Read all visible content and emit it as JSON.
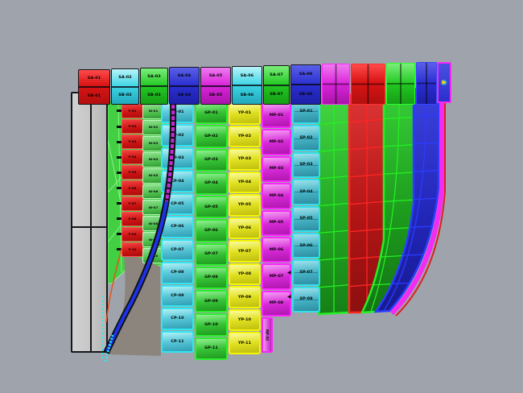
{
  "colors": {
    "background": "#9fa4ac",
    "hull_shell_gray": "#8b857d",
    "pillar_gray": "#c6c6c6",
    "red": "#d31717",
    "green": "#27c427",
    "blue": "#2a2ed0",
    "cyan": "#38d8e6",
    "magenta": "#d924d9",
    "yellow": "#e2dd16",
    "grid_green_border": "#24f024",
    "grid_red_border": "#ff2525",
    "grid_blue_border": "#2b3cff",
    "edge_magenta": "#f32bf3",
    "stem_magenta": "#c92ad8",
    "stem_blue": "#1d33ea",
    "stem_outline": "#101016",
    "dotted_cyan": "#28eaec",
    "accent_orange": "#e0551a"
  },
  "icons": {
    "end_cap_arrow": "▶",
    "plate_marker": "◀"
  },
  "top_band": {
    "blocks": [
      {
        "color": "red",
        "labels": [
          "SA-01",
          "SB-01"
        ]
      },
      {
        "color": "cyan",
        "labels": [
          "SA-02",
          "SB-02"
        ]
      },
      {
        "color": "green",
        "labels": [
          "SA-03",
          "SB-03"
        ]
      },
      {
        "color": "blue",
        "labels": [
          "SA-04",
          "SB-04"
        ]
      },
      {
        "color": "magenta",
        "labels": [
          "SA-05",
          "SB-05"
        ]
      },
      {
        "color": "cyan",
        "labels": [
          "SA-06",
          "SB-06"
        ]
      },
      {
        "color": "green",
        "labels": [
          "SA-07",
          "SB-07"
        ]
      },
      {
        "color": "blue",
        "labels": [
          "SA-08",
          "SB-08"
        ]
      },
      {
        "color": "magenta"
      },
      {
        "color": "red"
      },
      {
        "color": "green"
      },
      {
        "color": "blue"
      }
    ]
  },
  "strakes": {
    "frame_strip": {
      "labels": [
        "F-01",
        "F-02",
        "F-03",
        "F-04",
        "F-05",
        "F-06",
        "F-07",
        "F-08",
        "F-09",
        "F-10"
      ]
    },
    "web_strip": {
      "labels": [
        "W-01",
        "W-02",
        "W-03",
        "W-04",
        "W-05",
        "W-06",
        "W-07",
        "W-08",
        "W-09",
        "W-10"
      ]
    },
    "columns": [
      {
        "id": "cyan-strake-1",
        "color": "cyan",
        "labels": [
          "CP-01",
          "CP-02",
          "CP-03",
          "CP-04",
          "CP-05",
          "CP-06",
          "CP-07",
          "CP-08",
          "CP-09",
          "CP-10",
          "CP-11"
        ]
      },
      {
        "id": "green-strake-1",
        "color": "green",
        "labels": [
          "GP-01",
          "GP-02",
          "GP-03",
          "GP-04",
          "GP-05",
          "GP-06",
          "GP-07",
          "GP-08",
          "GP-09",
          "GP-10",
          "GP-11"
        ]
      },
      {
        "id": "yellow-strake",
        "color": "yellow",
        "labels": [
          "YP-01",
          "YP-02",
          "YP-03",
          "YP-04",
          "YP-05",
          "YP-06",
          "YP-07",
          "YP-08",
          "YP-09",
          "YP-10",
          "YP-11"
        ]
      },
      {
        "id": "magenta-strake",
        "color": "magenta",
        "labels": [
          "MP-01",
          "MP-02",
          "MP-03",
          "MP-04",
          "MP-05",
          "MP-06",
          "MP-07",
          "MP-08"
        ],
        "tail_label": "MP-09"
      },
      {
        "id": "cyan-strake-2",
        "color": "cyan",
        "labels": [
          "SP-01",
          "SP-02",
          "SP-03",
          "SP-04",
          "SP-05",
          "SP-06",
          "SP-07",
          "SP-08"
        ]
      }
    ]
  },
  "right_section": {
    "columns": [
      {
        "id": "green-grid-1",
        "color": "green"
      },
      {
        "id": "red-grid",
        "color": "red"
      },
      {
        "id": "green-grid-2",
        "color": "green"
      },
      {
        "id": "blue-grid",
        "color": "blue"
      }
    ]
  }
}
